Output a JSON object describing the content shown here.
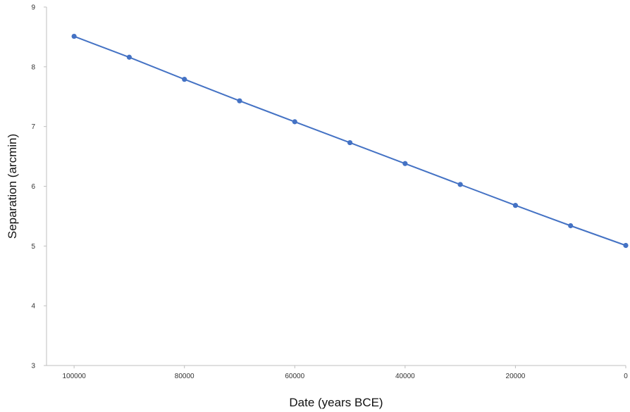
{
  "chart_data": {
    "type": "line",
    "title": "",
    "xlabel": "Date (years BCE)",
    "ylabel": "Separation (arcmin)",
    "x_reversed": true,
    "xlim": [
      105000,
      0
    ],
    "ylim": [
      3,
      9
    ],
    "x_ticks": [
      100000,
      80000,
      60000,
      40000,
      20000,
      0
    ],
    "x_tick_labels": [
      "100000",
      "80000",
      "60000",
      "40000",
      "20000",
      "0"
    ],
    "y_ticks": [
      3,
      4,
      5,
      6,
      7,
      8,
      9
    ],
    "y_tick_labels": [
      "3",
      "4",
      "5",
      "6",
      "7",
      "8",
      "9"
    ],
    "grid": false,
    "legend": "none",
    "series": [
      {
        "color": "#4472c4",
        "x": [
          100000,
          90000,
          80000,
          70000,
          60000,
          50000,
          40000,
          30000,
          20000,
          10000,
          0
        ],
        "y": [
          8.51,
          8.16,
          7.79,
          7.43,
          7.08,
          6.73,
          6.38,
          6.03,
          5.68,
          5.34,
          5.01
        ]
      }
    ]
  }
}
